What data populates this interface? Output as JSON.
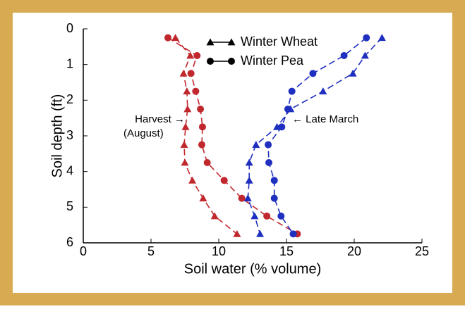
{
  "chart_data": {
    "type": "line",
    "xlabel": "Soil water (% volume)",
    "ylabel": "Soil depth (ft)",
    "xlim": [
      0,
      25
    ],
    "xticks": [
      0,
      5,
      10,
      15,
      20,
      25
    ],
    "ylim": [
      0,
      6
    ],
    "yticks": [
      0,
      1,
      2,
      3,
      4,
      5,
      6
    ],
    "y_inverted": true,
    "y": [
      0.25,
      0.75,
      1.25,
      1.75,
      2.25,
      2.75,
      3.25,
      3.75,
      4.25,
      4.75,
      5.25,
      5.75
    ],
    "legend_color": "#000000",
    "series": [
      {
        "name": "Winter Wheat",
        "marker": "triangle",
        "color": "#c0282d",
        "values": [
          6.8,
          7.9,
          7.4,
          7.65,
          7.7,
          7.55,
          7.45,
          7.5,
          8.05,
          8.85,
          9.7,
          11.35
        ]
      },
      {
        "name": "Winter Pea",
        "marker": "circle",
        "color": "#c0282d",
        "values": [
          6.25,
          8.4,
          7.95,
          8.3,
          8.65,
          8.8,
          8.75,
          9.15,
          10.4,
          11.7,
          13.55,
          15.8
        ]
      },
      {
        "marker": "triangle",
        "color": "#1f2fbf",
        "values": [
          22.05,
          20.8,
          19.9,
          17.7,
          15.3,
          14.3,
          12.75,
          12.25,
          12.25,
          12.15,
          12.65,
          13.05
        ]
      },
      {
        "marker": "circle",
        "color": "#1f2fbf",
        "values": [
          20.9,
          19.25,
          16.95,
          15.4,
          15.1,
          14.65,
          13.65,
          13.7,
          14.1,
          14.1,
          14.6,
          15.5
        ]
      }
    ],
    "annotations": [
      "Harvest →",
      "(August)",
      "← Late March"
    ]
  }
}
